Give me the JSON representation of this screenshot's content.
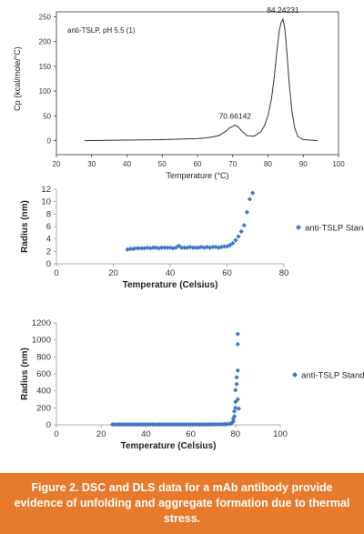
{
  "chart_data": [
    {
      "type": "line",
      "xlabel": "Temperature (°C)",
      "ylabel": "Cp (kcal/mole/°C)",
      "annotation": "anti-TSLP, pH 5.5 (1)",
      "xlim": [
        20,
        100
      ],
      "ylim": [
        -10,
        260
      ],
      "xticks": [
        "20",
        "30",
        "40",
        "50",
        "60",
        "70",
        "80",
        "90",
        "100"
      ],
      "yticks": [
        "0",
        "50",
        "100",
        "150",
        "200",
        "250"
      ],
      "series": [
        {
          "x": [
            28,
            40,
            50,
            55,
            60,
            62,
            64,
            66,
            67,
            68,
            69,
            70,
            70.66,
            71.5,
            72.5,
            74,
            76,
            78,
            79,
            80,
            81,
            81.8,
            82.5,
            83.2,
            83.7,
            84.24,
            84.8,
            85.4,
            86,
            86.8,
            87.6,
            88.5,
            90,
            92,
            94
          ],
          "values": [
            0,
            1,
            2,
            3,
            4,
            5,
            7,
            10,
            14,
            19,
            25,
            29,
            31,
            28,
            20,
            10,
            9,
            18,
            30,
            50,
            85,
            130,
            180,
            222,
            238,
            245,
            225,
            175,
            115,
            60,
            25,
            8,
            2,
            1,
            0
          ]
        }
      ],
      "peak_labels": [
        {
          "x": 70.66,
          "y": 31,
          "text": "70.66142"
        },
        {
          "x": 84.24,
          "y": 245,
          "text": "84.24231"
        }
      ],
      "color": "#333333"
    },
    {
      "type": "scatter",
      "xlabel": "Temperature (Celsius)",
      "ylabel": "Radius (nm)",
      "xlim": [
        0,
        80
      ],
      "ylim": [
        0,
        12
      ],
      "xticks": [
        "0",
        "20",
        "40",
        "60",
        "80"
      ],
      "yticks": [
        "0",
        "2",
        "4",
        "6",
        "8",
        "10",
        "12"
      ],
      "series": [
        {
          "name": "anti-TSLP Standard",
          "x": [
            25,
            26,
            27,
            28,
            29,
            30,
            31,
            32,
            33,
            34,
            35,
            36,
            37,
            38,
            39,
            40,
            41,
            42,
            43,
            44,
            45,
            46,
            47,
            48,
            49,
            50,
            51,
            52,
            53,
            54,
            55,
            56,
            57,
            58,
            59,
            60,
            61,
            62,
            63,
            64,
            65,
            66,
            67,
            68,
            69
          ],
          "values": [
            2.3,
            2.4,
            2.4,
            2.5,
            2.5,
            2.5,
            2.5,
            2.6,
            2.5,
            2.6,
            2.6,
            2.5,
            2.6,
            2.6,
            2.6,
            2.6,
            2.5,
            2.6,
            2.9,
            2.6,
            2.6,
            2.6,
            2.7,
            2.6,
            2.6,
            2.6,
            2.7,
            2.6,
            2.7,
            2.6,
            2.7,
            2.7,
            2.6,
            2.7,
            2.8,
            2.8,
            3.0,
            3.3,
            3.8,
            4.4,
            5.2,
            6.2,
            8.3,
            10.4,
            11.4
          ]
        }
      ],
      "legend": "right",
      "color": "#3a78c3"
    },
    {
      "type": "scatter",
      "xlabel": "Temperature (Celsius)",
      "ylabel": "Radius (nm)",
      "xlim": [
        0,
        100
      ],
      "ylim": [
        0,
        1200
      ],
      "xticks": [
        "0",
        "20",
        "40",
        "60",
        "80",
        "100"
      ],
      "yticks": [
        "0",
        "200",
        "400",
        "600",
        "800",
        "1000",
        "1200"
      ],
      "series": [
        {
          "name": "anti-TSLP Standard",
          "x": [
            25,
            26,
            27,
            28,
            29,
            30,
            31,
            32,
            33,
            34,
            35,
            36,
            37,
            38,
            39,
            40,
            41,
            42,
            43,
            44,
            45,
            46,
            47,
            48,
            49,
            50,
            51,
            52,
            53,
            54,
            55,
            56,
            57,
            58,
            59,
            60,
            61,
            62,
            63,
            64,
            65,
            66,
            67,
            68,
            69,
            70,
            71,
            72,
            73,
            74,
            75,
            76,
            77,
            78,
            78.5,
            79,
            79,
            79.5,
            79.5,
            80,
            80,
            80,
            80.5,
            80.5,
            81,
            81,
            81,
            81,
            81.5
          ],
          "values": [
            4,
            4,
            4,
            4,
            4,
            4,
            4,
            4,
            4,
            4,
            4,
            4,
            4,
            4,
            4,
            4,
            4,
            4,
            4,
            4,
            4,
            4,
            4,
            4,
            4,
            4,
            4,
            4,
            4,
            4,
            4,
            4,
            4,
            4,
            4,
            4,
            4,
            4,
            4,
            4,
            4,
            4,
            4,
            4,
            5,
            5,
            6,
            6,
            6,
            7,
            7,
            8,
            10,
            15,
            25,
            40,
            70,
            100,
            160,
            200,
            270,
            410,
            480,
            560,
            640,
            950,
            1070,
            300,
            190
          ]
        }
      ],
      "legend": "right",
      "color": "#3a78c3"
    }
  ],
  "caption": "Figure 2. DSC and DLS data for a mAb antibody provide evidence of unfolding and aggregate formation due to thermal stress."
}
